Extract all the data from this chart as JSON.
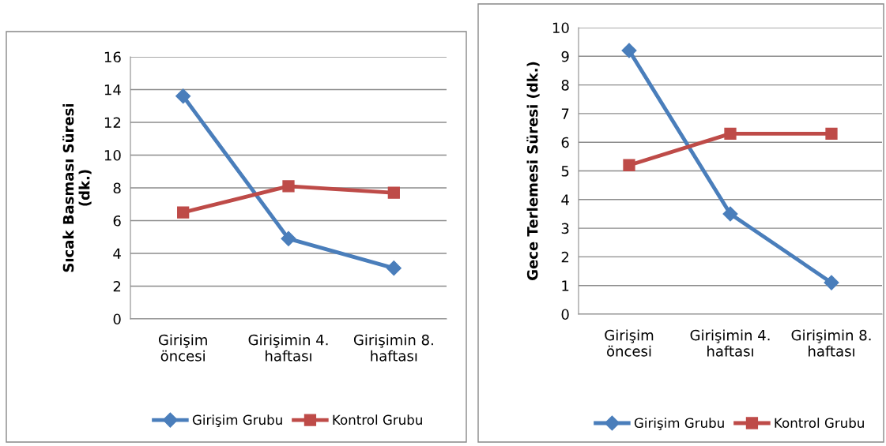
{
  "chart_data": [
    {
      "type": "line",
      "ylabel": "Sıcak Basması Süresi\n(dk.)",
      "categories": [
        "Girişim\nöncesi",
        "Girişimin 4.\nhaftası",
        "Girişimin 8.\nhaftası"
      ],
      "series": [
        {
          "name": "Girişim Grubu",
          "color": "#4a7ebb",
          "marker": "diamond",
          "values": [
            13.6,
            4.9,
            3.1
          ]
        },
        {
          "name": "Kontrol Grubu",
          "color": "#be4b48",
          "marker": "square",
          "values": [
            6.5,
            8.1,
            7.7
          ]
        }
      ],
      "ylim": [
        0,
        16
      ],
      "yticks": [
        0,
        2,
        4,
        6,
        8,
        10,
        12,
        14,
        16
      ],
      "grid": "y",
      "legend": "bottom"
    },
    {
      "type": "line",
      "ylabel": "Gece Terlemesi Süresi (dk.)",
      "categories": [
        "Girişim\nöncesi",
        "Girişimin 4.\nhaftası",
        "Girişimin 8.\nhaftası"
      ],
      "series": [
        {
          "name": "Girişim Grubu",
          "color": "#4a7ebb",
          "marker": "diamond",
          "values": [
            9.2,
            3.5,
            1.1
          ]
        },
        {
          "name": "Kontrol Grubu",
          "color": "#be4b48",
          "marker": "square",
          "values": [
            5.2,
            6.3,
            6.3
          ]
        }
      ],
      "ylim": [
        0,
        10
      ],
      "yticks": [
        0,
        1,
        2,
        3,
        4,
        5,
        6,
        7,
        8,
        9,
        10
      ],
      "grid": "y",
      "legend": "bottom"
    }
  ]
}
